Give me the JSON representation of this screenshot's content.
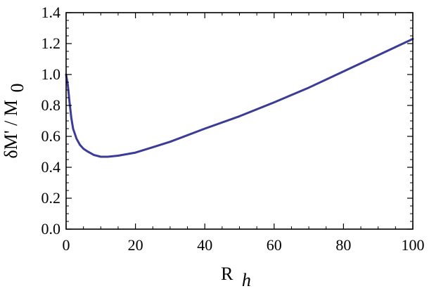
{
  "chart_data": {
    "type": "line",
    "xlabel": {
      "main": "R",
      "sub": "h"
    },
    "ylabel": {
      "main": "δM' / M",
      "sub": "0"
    },
    "xlim": [
      0,
      100
    ],
    "ylim": [
      0,
      1.4
    ],
    "x_ticks": [
      0,
      20,
      40,
      60,
      80,
      100
    ],
    "x_tick_labels": [
      "0",
      "20",
      "40",
      "60",
      "80",
      "100"
    ],
    "y_ticks": [
      0,
      0.2,
      0.4,
      0.6,
      0.8,
      1.0,
      1.2,
      1.4
    ],
    "y_tick_labels": [
      "0.0",
      "0.2",
      "0.4",
      "0.6",
      "0.8",
      "1.0",
      "1.2",
      "1.4"
    ],
    "grid": false,
    "line_color": "#3c3c96",
    "series": [
      {
        "x": [
          0,
          0.5,
          1,
          1.5,
          2,
          3,
          4,
          5,
          6,
          8,
          10,
          12,
          15,
          20,
          25,
          30,
          40,
          50,
          60,
          70,
          80,
          90,
          100
        ],
        "y": [
          1.0,
          0.93,
          0.82,
          0.72,
          0.65,
          0.585,
          0.545,
          0.52,
          0.505,
          0.48,
          0.468,
          0.468,
          0.475,
          0.495,
          0.53,
          0.565,
          0.65,
          0.73,
          0.82,
          0.915,
          1.02,
          1.125,
          1.23
        ]
      }
    ]
  }
}
